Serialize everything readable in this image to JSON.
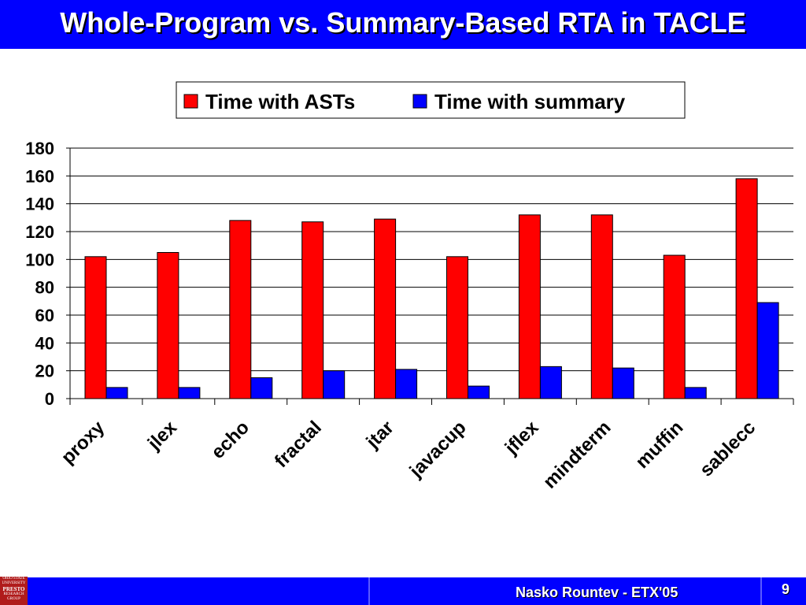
{
  "slide": {
    "title": "Whole-Program vs. Summary-Based RTA in TACLE",
    "footer_author": "Nasko Rountev - ETX'05",
    "page_number": "9",
    "logo_lines": [
      "OHIO STATE",
      "UNIVERSITY",
      "PRESTO",
      "RESEARCH",
      "GROUP"
    ]
  },
  "colors": {
    "bar_blue_header": "#0000ff",
    "series_asts": "#ff0000",
    "series_summary": "#0000ff"
  },
  "chart_data": {
    "type": "bar",
    "categories": [
      "proxy",
      "jlex",
      "echo",
      "fractal",
      "jtar",
      "javacup",
      "jflex",
      "mindterm",
      "muffin",
      "sablecc"
    ],
    "series": [
      {
        "name": "Time with ASTs",
        "color": "#ff0000",
        "values": [
          102,
          105,
          128,
          127,
          129,
          102,
          132,
          132,
          103,
          158
        ]
      },
      {
        "name": "Time with summary",
        "color": "#0000ff",
        "values": [
          8,
          8,
          15,
          20,
          21,
          9,
          23,
          22,
          8,
          69
        ]
      }
    ],
    "ylim": [
      0,
      180
    ],
    "yticks": [
      0,
      20,
      40,
      60,
      80,
      100,
      120,
      140,
      160,
      180
    ],
    "grid": true,
    "legend_position": "top-right",
    "xlabel": "",
    "ylabel": ""
  }
}
